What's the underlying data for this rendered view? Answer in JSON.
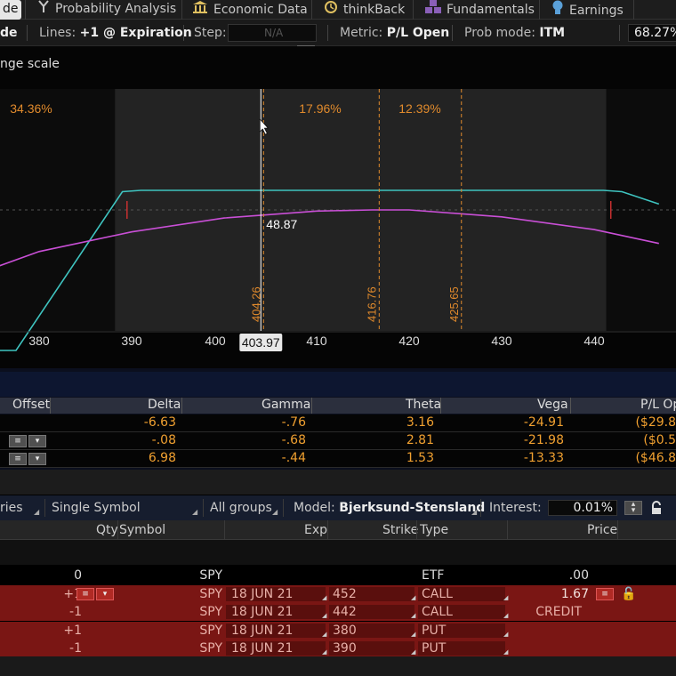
{
  "tabs": [
    {
      "label": "de",
      "icon": "active-tab",
      "active": true
    },
    {
      "label": "Probability Analysis",
      "icon": "branch-icon"
    },
    {
      "label": "Economic Data",
      "icon": "bank-icon"
    },
    {
      "label": "thinkBack",
      "icon": "history-icon"
    },
    {
      "label": "Fundamentals",
      "icon": "blocks-icon"
    },
    {
      "label": "Earnings",
      "icon": "bulb-icon"
    }
  ],
  "toolbar": {
    "mode_partial": "de",
    "lines_label": "Lines:",
    "lines_value": "+1 @ Expiration",
    "step_label": "Step:",
    "step_value": "N/A",
    "metric_label": "Metric:",
    "metric_value": "P/L Open",
    "prob_label": "Prob mode:",
    "prob_value": "ITM",
    "percent_value": "68.27%"
  },
  "chart_header": {
    "range_label": "nge scale"
  },
  "chart_data": {
    "type": "line",
    "x_ticks": [
      "380",
      "390",
      "400",
      "410",
      "420",
      "430",
      "440"
    ],
    "xlim": [
      372,
      443
    ],
    "current_price_label": "403.97",
    "current_price": 403.97,
    "hover_value": "48.87",
    "probabilities": [
      "34.36%",
      "17.96%",
      "12.39%"
    ],
    "vertical_markers": [
      {
        "label": "404.26",
        "x": 404.26
      },
      {
        "label": "416.76",
        "x": 416.76
      },
      {
        "label": "425.65",
        "x": 425.65
      }
    ],
    "series": [
      {
        "color": "#3fc4c0",
        "points": [
          [
            372,
            -1.0
          ],
          [
            377.5,
            -1.0
          ],
          [
            389,
            0.93
          ],
          [
            391,
            1.0
          ],
          [
            414,
            1.0
          ],
          [
            441,
            1.0
          ],
          [
            443,
            0.93
          ],
          [
            447,
            0.3
          ]
        ]
      },
      {
        "color": "#c94fd6",
        "points": [
          [
            372,
            0.2
          ],
          [
            380,
            0.43
          ],
          [
            390,
            0.6
          ],
          [
            400,
            0.72
          ],
          [
            410,
            0.78
          ],
          [
            416,
            0.79
          ],
          [
            420,
            0.79
          ],
          [
            430,
            0.73
          ],
          [
            440,
            0.62
          ],
          [
            447,
            0.5
          ]
        ]
      }
    ],
    "colors": {
      "profit": "#3fc4c0",
      "theo": "#c94fd6",
      "marker": "#e08a2c",
      "cursor": "#ffffff"
    }
  },
  "greeks": {
    "headers": [
      "Offset",
      "Delta",
      "Gamma",
      "Theta",
      "Vega",
      "P/L Op"
    ],
    "rows": [
      {
        "delta": "-6.63",
        "gamma": "-.76",
        "theta": "3.16",
        "vega": "-24.91",
        "pl": "($29.8"
      },
      {
        "delta": "-.08",
        "gamma": "-.68",
        "theta": "2.81",
        "vega": "-21.98",
        "pl": "($0.5"
      },
      {
        "delta": "6.98",
        "gamma": "-.44",
        "theta": "1.53",
        "vega": "-13.33",
        "pl": "($46.8"
      }
    ]
  },
  "filters": {
    "series_partial": "ries",
    "symbol_mode": "Single Symbol",
    "groups": "All groups",
    "model_label": "Model:",
    "model_value": "Bjerksund-Stensland",
    "interest_label": "Interest:",
    "interest_value": "0.01%"
  },
  "positions": {
    "headers": [
      "Qty",
      "Symbol",
      "Exp",
      "Strike",
      "Type",
      "Price"
    ],
    "rows": [
      {
        "qty": "0",
        "symbol": "SPY",
        "exp": "",
        "strike": "",
        "type": "ETF",
        "price": ".00",
        "red": false
      },
      {
        "qty": "+1",
        "symbol": "SPY",
        "exp": "18 JUN 21",
        "strike": "452",
        "type": "CALL",
        "price": "1.67",
        "red": true
      },
      {
        "qty": "-1",
        "symbol": "SPY",
        "exp": "18 JUN 21",
        "strike": "442",
        "type": "CALL",
        "price": "CREDIT",
        "red": true
      },
      {
        "qty": "+1",
        "symbol": "SPY",
        "exp": "18 JUN 21",
        "strike": "380",
        "type": "PUT",
        "price": "",
        "red": true
      },
      {
        "qty": "-1",
        "symbol": "SPY",
        "exp": "18 JUN 21",
        "strike": "390",
        "type": "PUT",
        "price": "",
        "red": true
      }
    ]
  }
}
